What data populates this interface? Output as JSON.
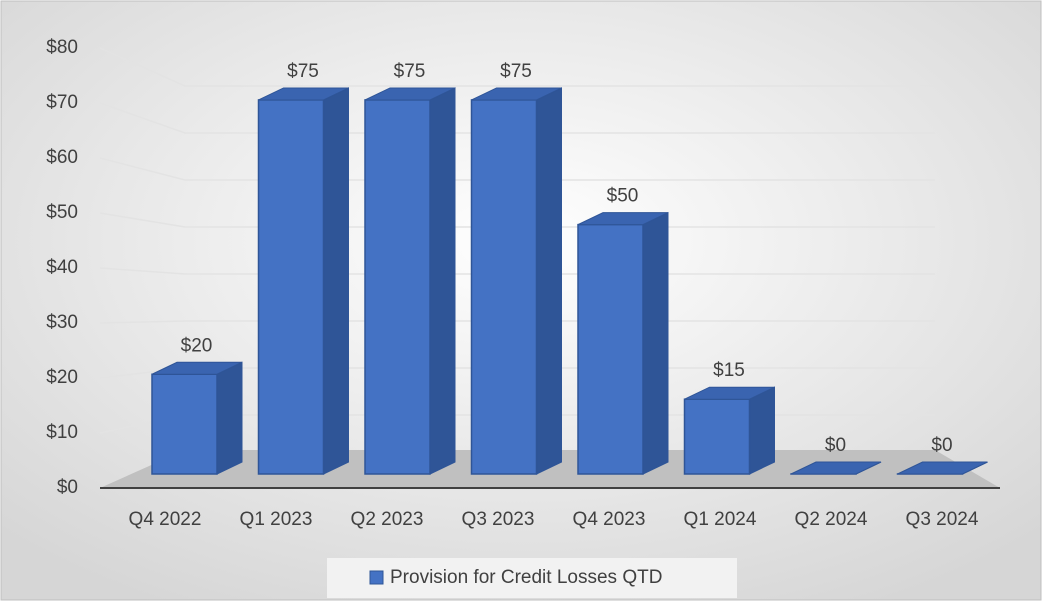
{
  "chart_data": {
    "type": "bar3d",
    "categories": [
      "Q4 2022",
      "Q1 2023",
      "Q2 2023",
      "Q3 2023",
      "Q4 2023",
      "Q1 2024",
      "Q2 2024",
      "Q3 2024"
    ],
    "series": [
      {
        "name": "Provision for Credit Losses QTD",
        "color": "#4472c4",
        "values": [
          20,
          75,
          75,
          75,
          50,
          15,
          0,
          0
        ],
        "value_labels": [
          "$20",
          "$75",
          "$75",
          "$75",
          "$50",
          "$15",
          "$0",
          "$0"
        ]
      }
    ],
    "ylim": [
      0,
      80
    ],
    "yticks": [
      {
        "value": 0,
        "label": "$0"
      },
      {
        "value": 10,
        "label": "$10"
      },
      {
        "value": 20,
        "label": "$20"
      },
      {
        "value": 30,
        "label": "$30"
      },
      {
        "value": 40,
        "label": "$40"
      },
      {
        "value": 50,
        "label": "$50"
      },
      {
        "value": 60,
        "label": "$60"
      },
      {
        "value": 70,
        "label": "$70"
      },
      {
        "value": 80,
        "label": "$80"
      }
    ],
    "grid": true,
    "legend": "bottom"
  }
}
